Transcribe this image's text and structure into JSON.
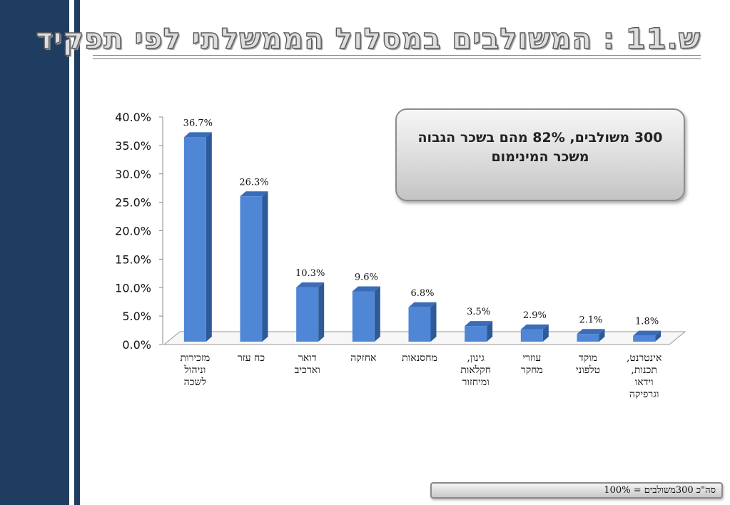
{
  "title": "ש.11 : המשולבים במסלול הממשלתי לפי תפקיד",
  "callout": "300 משולבים, 82% מהם בשכר הגבוה משכר המינימום",
  "footer": "סה\"כ 300משולבים = 100%",
  "colors": {
    "bar_front": "#4f86d6",
    "bar_side": "#2e5a9a",
    "bar_top": "#3a6cb8",
    "sidebar": "#1f3d60"
  },
  "chart_data": {
    "type": "bar",
    "categories": [
      "מזכירות\nוניהול\nלשכה",
      "כח עזר",
      "דואר\nוארכיב",
      "אחזקה",
      "מחסנאות",
      "גינון,\nחקלאות\nומיחזור",
      "עוזרי\nמחקר",
      "מוקד\nטלפוני",
      "אינטרנט,\nתכנות,\nוידאו\nוגרפיקה"
    ],
    "values": [
      36.7,
      26.3,
      10.3,
      9.6,
      6.8,
      3.5,
      2.9,
      2.1,
      1.8
    ],
    "data_labels": [
      "36.7%",
      "26.3%",
      "10.3%",
      "9.6%",
      "6.8%",
      "3.5%",
      "2.9%",
      "2.1%",
      "1.8%"
    ],
    "y_ticks": [
      "0.0%",
      "5.0%",
      "10.0%",
      "15.0%",
      "20.0%",
      "25.0%",
      "30.0%",
      "35.0%",
      "40.0%"
    ],
    "ylim": [
      0,
      40
    ],
    "grid": false,
    "legend": "none"
  }
}
